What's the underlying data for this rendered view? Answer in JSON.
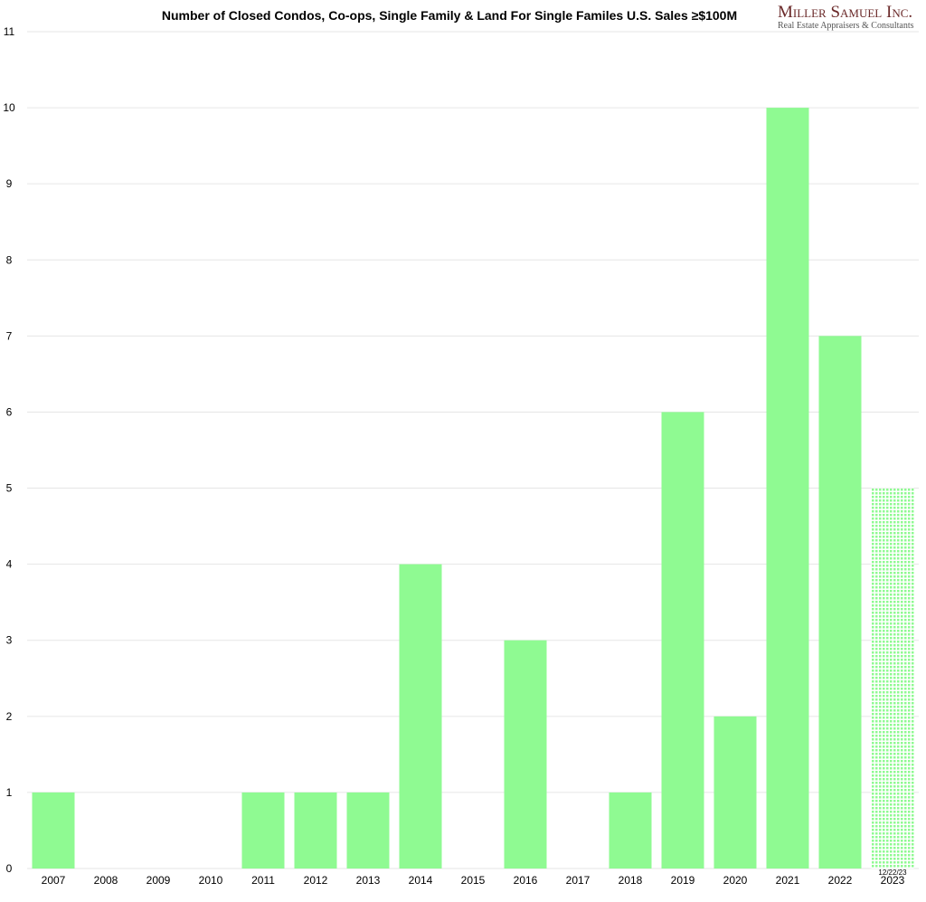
{
  "chart_data": {
    "type": "bar",
    "title": "Number of Closed Condos, Co-ops, Single Family & Land For Single Familes U.S. Sales ≥$100M",
    "categories": [
      "2007",
      "2008",
      "2009",
      "2010",
      "2011",
      "2012",
      "2013",
      "2014",
      "2015",
      "2016",
      "2017",
      "2018",
      "2019",
      "2020",
      "2021",
      "2022",
      "2023"
    ],
    "values": [
      1,
      0,
      0,
      0,
      1,
      1,
      1,
      4,
      0,
      3,
      0,
      1,
      6,
      2,
      10,
      7,
      5
    ],
    "partial_year_note": "12/22/23",
    "partial_index": 16,
    "xlabel": "",
    "ylabel": "",
    "ylim": [
      0,
      11
    ],
    "yticks": [
      0,
      1,
      2,
      3,
      4,
      5,
      6,
      7,
      8,
      9,
      10,
      11
    ],
    "grid": true,
    "bar_color": "#8ffa92"
  },
  "logo": {
    "name": "Miller Samuel Inc.",
    "tagline": "Real Estate Appraisers & Consultants"
  }
}
